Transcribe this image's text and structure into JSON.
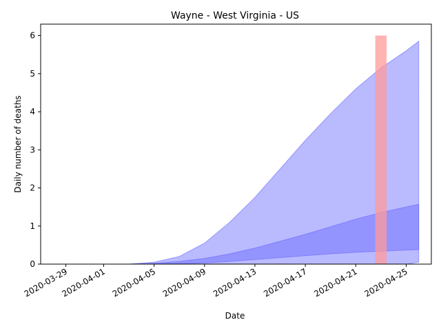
{
  "chart_data": {
    "type": "area",
    "title": "Wayne - West Virginia - US",
    "xlabel": "Date",
    "ylabel": "Daily number of deaths",
    "x_range": [
      "2020-03-27",
      "2020-04-27"
    ],
    "ylim": [
      0,
      6.3
    ],
    "x_ticks": [
      "2020-03-29",
      "2020-04-01",
      "2020-04-05",
      "2020-04-09",
      "2020-04-13",
      "2020-04-17",
      "2020-04-21",
      "2020-04-25"
    ],
    "y_ticks": [
      0,
      1,
      2,
      3,
      4,
      5,
      6
    ],
    "grid": false,
    "x": [
      "2020-04-01",
      "2020-04-03",
      "2020-04-05",
      "2020-04-07",
      "2020-04-09",
      "2020-04-11",
      "2020-04-13",
      "2020-04-15",
      "2020-04-17",
      "2020-04-19",
      "2020-04-21",
      "2020-04-23",
      "2020-04-25",
      "2020-04-26"
    ],
    "bands": [
      {
        "color": "#6666ff",
        "opacity": 0.45,
        "lower": [
          0,
          0,
          0,
          0,
          0,
          0,
          0,
          0,
          0,
          0,
          0,
          0,
          0,
          0.05
        ],
        "upper": [
          0,
          0,
          0.05,
          0.2,
          0.55,
          1.1,
          1.75,
          2.5,
          3.25,
          3.95,
          4.6,
          5.15,
          5.6,
          5.85
        ]
      },
      {
        "color": "#6666ff",
        "opacity": 0.45,
        "lower": [
          0,
          0,
          0,
          0.01,
          0.03,
          0.07,
          0.12,
          0.17,
          0.22,
          0.27,
          0.31,
          0.34,
          0.37,
          0.38
        ],
        "upper": [
          0,
          0,
          0.02,
          0.07,
          0.15,
          0.27,
          0.42,
          0.6,
          0.78,
          0.98,
          1.18,
          1.35,
          1.5,
          1.57
        ]
      }
    ],
    "observed_bar": {
      "date": "2020-04-23",
      "value": 6,
      "color": "#ff9999"
    }
  }
}
